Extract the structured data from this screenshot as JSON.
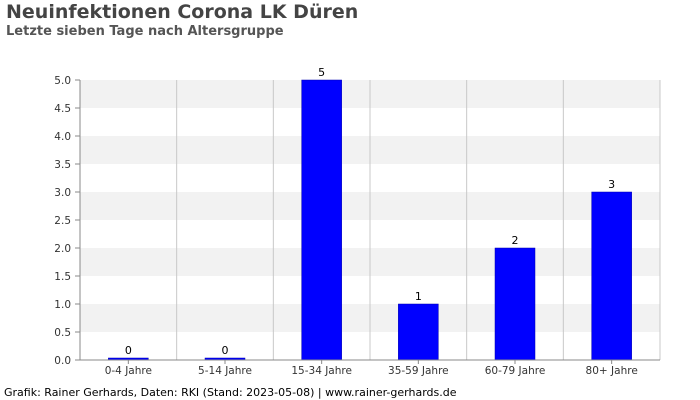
{
  "chart_data": {
    "type": "bar",
    "title": "Neuinfektionen Corona LK Düren",
    "subtitle": "Letzte sieben Tage nach Altersgruppe",
    "categories": [
      "0-4 Jahre",
      "5-14 Jahre",
      "15-34 Jahre",
      "35-59 Jahre",
      "60-79 Jahre",
      "80+ Jahre"
    ],
    "values": [
      0,
      0,
      5,
      1,
      2,
      3
    ],
    "data_labels": [
      "0",
      "0",
      "5",
      "1",
      "2",
      "3"
    ],
    "ylim": [
      0,
      5
    ],
    "yticks": [
      "0.0",
      "0.5",
      "1.0",
      "1.5",
      "2.0",
      "2.5",
      "3.0",
      "3.5",
      "4.0",
      "4.5",
      "5.0"
    ],
    "xlabel": "",
    "ylabel": "",
    "grid": true,
    "bar_color": "#0000ff",
    "band_color": "#f2f2f2"
  },
  "footer": "Grafik: Rainer Gerhards, Daten: RKI (Stand: 2023-05-08) | www.rainer-gerhards.de"
}
